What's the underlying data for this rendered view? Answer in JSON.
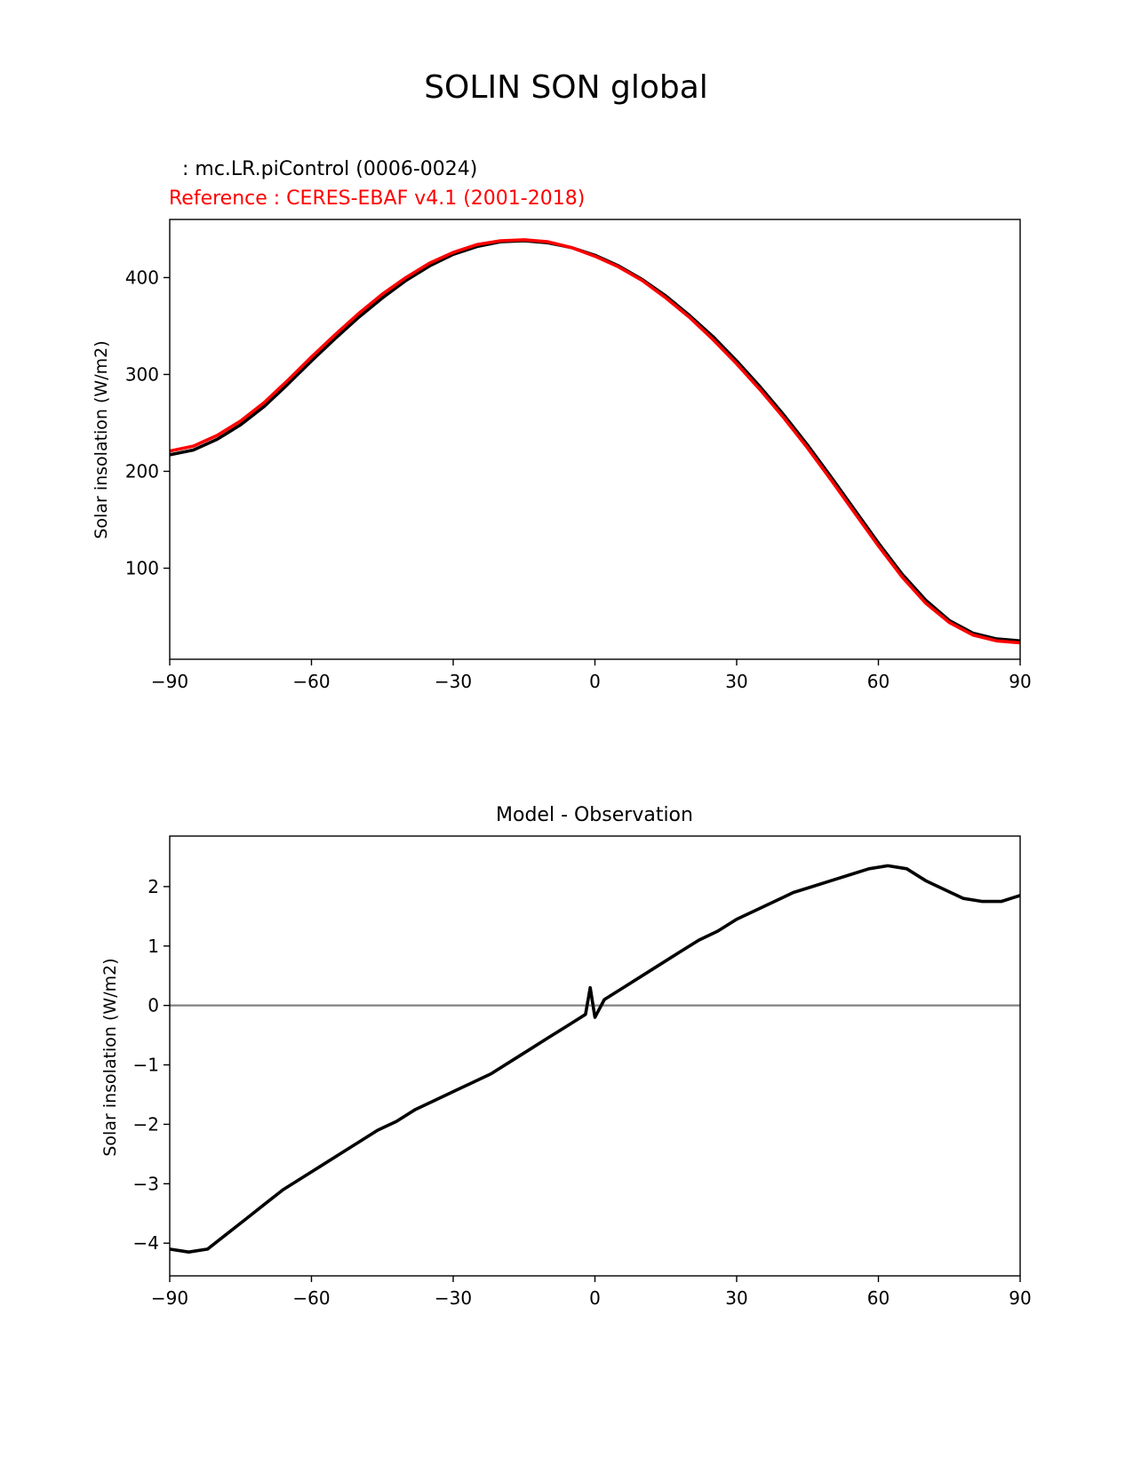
{
  "figure_title": "SOLIN SON global",
  "chart_data": [
    {
      "type": "line",
      "model_label": ": mc.LR.piControl (0006-0024)",
      "reference_label": "Reference : CERES-EBAF v4.1 (2001-2018)",
      "title": "",
      "xlabel": "",
      "ylabel": "Solar insolation (W/m2)",
      "xlim": [
        -90,
        90
      ],
      "ylim": [
        6,
        460
      ],
      "xticks": [
        -90,
        -60,
        -30,
        0,
        30,
        60,
        90
      ],
      "xtick_labels": [
        "−90",
        "−60",
        "−30",
        "0",
        "30",
        "60",
        "90"
      ],
      "yticks": [
        100,
        200,
        300,
        400
      ],
      "ytick_labels": [
        "100",
        "200",
        "300",
        "400"
      ],
      "x": [
        -90,
        -85,
        -80,
        -75,
        -70,
        -65,
        -60,
        -55,
        -50,
        -45,
        -40,
        -35,
        -30,
        -25,
        -20,
        -15,
        -10,
        -5,
        0,
        5,
        10,
        15,
        20,
        25,
        30,
        35,
        40,
        45,
        50,
        55,
        60,
        65,
        70,
        75,
        80,
        85,
        90
      ],
      "series": [
        {
          "color": "#000000",
          "values": [
            217,
            222,
            233,
            248,
            267,
            290,
            314,
            337,
            359,
            379,
            397,
            412,
            424,
            432,
            437,
            438,
            436,
            431,
            423,
            412,
            398,
            381,
            361,
            339,
            314,
            287,
            258,
            227,
            194,
            160,
            126,
            94,
            67,
            46,
            33,
            27,
            25
          ]
        },
        {
          "color": "#ff0000",
          "values": [
            221,
            226,
            237,
            252,
            271,
            294,
            318,
            341,
            363,
            383,
            400,
            415,
            426,
            434,
            438,
            439,
            437,
            431,
            422,
            411,
            397,
            379,
            359,
            336,
            311,
            284,
            255,
            224,
            191,
            157,
            123,
            91,
            64,
            44,
            31,
            25,
            23
          ]
        }
      ]
    },
    {
      "type": "line",
      "title": "Model - Observation",
      "xlabel": "",
      "ylabel": "Solar insolation (W/m2)",
      "xlim": [
        -90,
        90
      ],
      "ylim": [
        -4.55,
        2.85
      ],
      "xticks": [
        -90,
        -60,
        -30,
        0,
        30,
        60,
        90
      ],
      "xtick_labels": [
        "−90",
        "−60",
        "−30",
        "0",
        "30",
        "60",
        "90"
      ],
      "yticks": [
        -4,
        -3,
        -2,
        -1,
        0,
        1,
        2
      ],
      "ytick_labels": [
        "−4",
        "−3",
        "−2",
        "−1",
        "0",
        "1",
        "2"
      ],
      "zero_line_color": "#808080",
      "x": [
        -90,
        -86,
        -82,
        -78,
        -74,
        -70,
        -66,
        -62,
        -58,
        -54,
        -50,
        -46,
        -42,
        -38,
        -34,
        -30,
        -26,
        -22,
        -18,
        -14,
        -10,
        -6,
        -2,
        -1,
        0,
        2,
        6,
        10,
        14,
        18,
        22,
        26,
        30,
        34,
        38,
        42,
        46,
        50,
        54,
        58,
        62,
        66,
        70,
        74,
        78,
        82,
        86,
        90
      ],
      "series": [
        {
          "color": "#000000",
          "values": [
            -4.1,
            -4.15,
            -4.1,
            -3.85,
            -3.6,
            -3.35,
            -3.1,
            -2.9,
            -2.7,
            -2.5,
            -2.3,
            -2.1,
            -1.95,
            -1.75,
            -1.6,
            -1.45,
            -1.3,
            -1.15,
            -0.95,
            -0.75,
            -0.55,
            -0.35,
            -0.15,
            0.3,
            -0.2,
            0.1,
            0.3,
            0.5,
            0.7,
            0.9,
            1.1,
            1.25,
            1.45,
            1.6,
            1.75,
            1.9,
            2.0,
            2.1,
            2.2,
            2.3,
            2.35,
            2.3,
            2.1,
            1.95,
            1.8,
            1.75,
            1.75,
            1.85
          ]
        }
      ]
    }
  ]
}
